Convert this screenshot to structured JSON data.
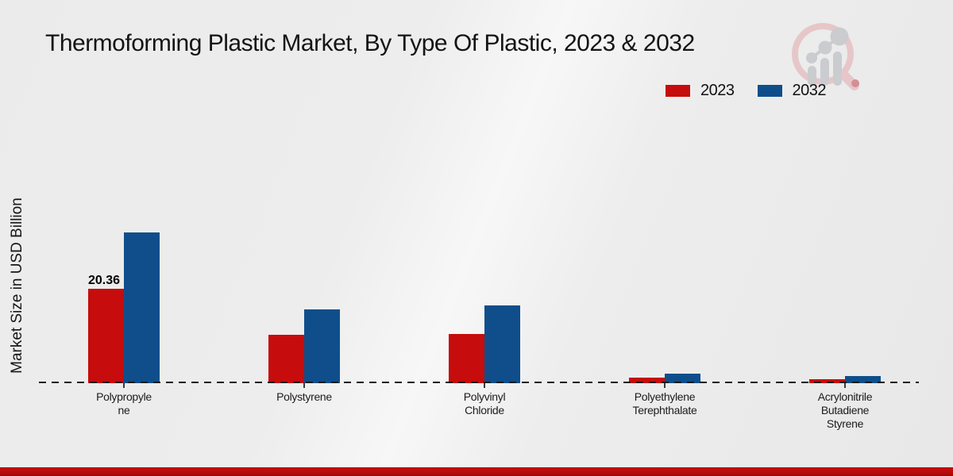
{
  "title": "Thermoforming Plastic Market, By Type Of Plastic, 2023 & 2032",
  "y_axis_label": "Market Size in USD Billion",
  "legend": [
    {
      "label": "2023",
      "color": "#c60c0c"
    },
    {
      "label": "2032",
      "color": "#0f4e8b"
    }
  ],
  "chart_data": {
    "type": "bar",
    "title": "Thermoforming Plastic Market, By Type Of Plastic, 2023 & 2032",
    "xlabel": "",
    "ylabel": "Market Size in USD Billion",
    "categories": [
      "Polypropylene",
      "Polystyrene",
      "Polyvinyl Chloride",
      "Polyethylene Terephthalate",
      "Acrylonitrile Butadiene Styrene"
    ],
    "category_label_lines": [
      [
        "Polypropyle",
        "ne"
      ],
      [
        "Polystyrene"
      ],
      [
        "Polyvinyl",
        "Chloride"
      ],
      [
        "Polyethylene",
        "Terephthalate"
      ],
      [
        "Acrylonitrile",
        "Butadiene",
        "Styrene"
      ]
    ],
    "series": [
      {
        "name": "2023",
        "color": "#c60c0c",
        "values": [
          20.36,
          10.4,
          10.6,
          1.2,
          0.9
        ]
      },
      {
        "name": "2032",
        "color": "#0f4e8b",
        "values": [
          32.5,
          15.9,
          16.8,
          2.1,
          1.5
        ]
      }
    ],
    "data_labels": [
      {
        "series": "2023",
        "category": "Polypropylene",
        "category_index": 0,
        "text": "20.36"
      }
    ],
    "ylim": [
      0,
      35
    ],
    "grid": false,
    "legend_position": "top-right",
    "baseline_style": "dashed",
    "y_ticks_visible": false
  },
  "logo": {
    "name": "market-research-magnifier-logo"
  },
  "footer": {
    "accent_color": "#b50b0b"
  }
}
